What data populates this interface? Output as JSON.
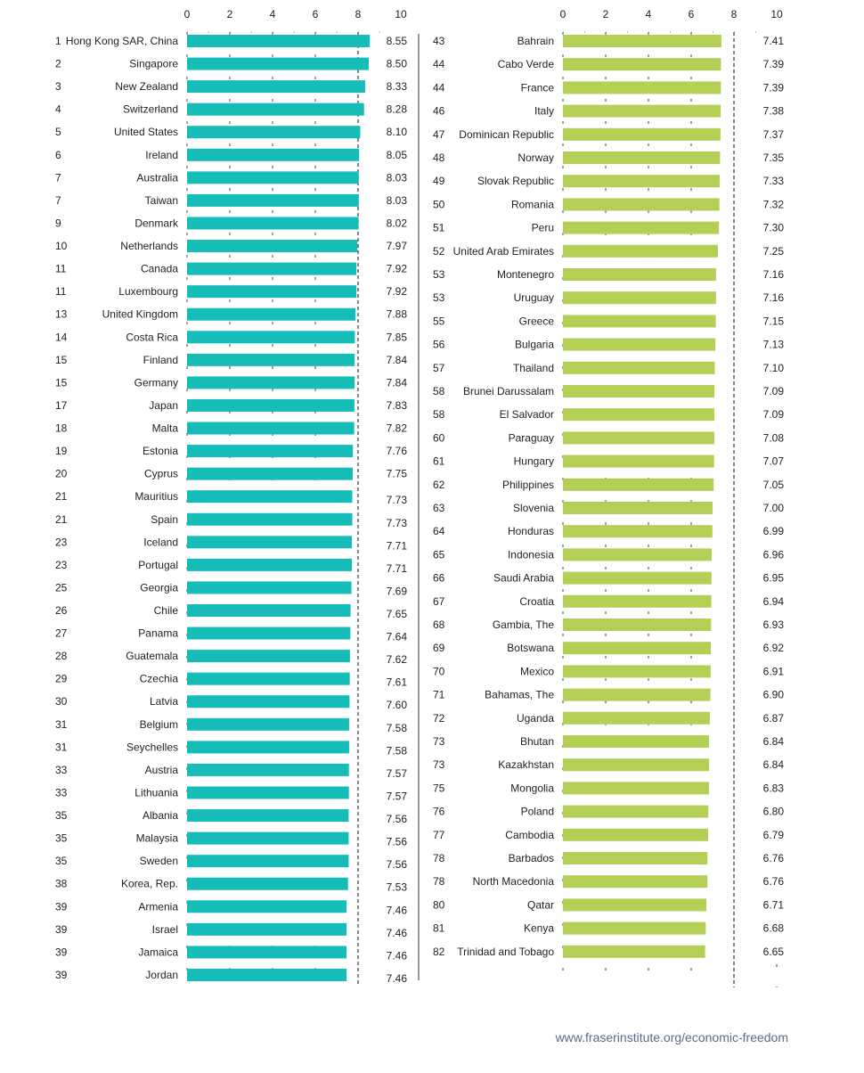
{
  "colors": {
    "left_bar": "#16bdb8",
    "right_bar": "#b3cf55",
    "grid": "#444444"
  },
  "footer": {
    "url": "www.fraserinstitute.org/economic-freedom"
  },
  "chart_data": [
    {
      "type": "bar",
      "orientation": "horizontal",
      "xlim": [
        0,
        10
      ],
      "xticks": [
        "0",
        "2",
        "4",
        "6",
        "8",
        "10"
      ],
      "grid": true,
      "rows": [
        {
          "rank": "1",
          "country": "Hong Kong SAR, China",
          "value": 8.55
        },
        {
          "rank": "2",
          "country": "Singapore",
          "value": 8.5
        },
        {
          "rank": "3",
          "country": "New Zealand",
          "value": 8.33
        },
        {
          "rank": "4",
          "country": "Switzerland",
          "value": 8.28
        },
        {
          "rank": "5",
          "country": "United States",
          "value": 8.1
        },
        {
          "rank": "6",
          "country": "Ireland",
          "value": 8.05
        },
        {
          "rank": "7",
          "country": "Australia",
          "value": 8.03
        },
        {
          "rank": "7",
          "country": "Taiwan",
          "value": 8.03
        },
        {
          "rank": "9",
          "country": "Denmark",
          "value": 8.02
        },
        {
          "rank": "10",
          "country": "Netherlands",
          "value": 7.97
        },
        {
          "rank": "11",
          "country": "Canada",
          "value": 7.92
        },
        {
          "rank": "11",
          "country": "Luxembourg",
          "value": 7.92
        },
        {
          "rank": "13",
          "country": "United Kingdom",
          "value": 7.88
        },
        {
          "rank": "14",
          "country": "Costa Rica",
          "value": 7.85
        },
        {
          "rank": "15",
          "country": "Finland",
          "value": 7.84
        },
        {
          "rank": "15",
          "country": "Germany",
          "value": 7.84
        },
        {
          "rank": "17",
          "country": "Japan",
          "value": 7.83
        },
        {
          "rank": "18",
          "country": "Malta",
          "value": 7.82
        },
        {
          "rank": "19",
          "country": "Estonia",
          "value": 7.76
        },
        {
          "rank": "20",
          "country": "Cyprus",
          "value": 7.75
        },
        {
          "rank": "21",
          "country": "Mauritius",
          "value": 7.73
        },
        {
          "rank": "21",
          "country": "Spain",
          "value": 7.73
        },
        {
          "rank": "23",
          "country": "Iceland",
          "value": 7.71
        },
        {
          "rank": "23",
          "country": "Portugal",
          "value": 7.71
        },
        {
          "rank": "25",
          "country": "Georgia",
          "value": 7.69
        },
        {
          "rank": "26",
          "country": "Chile",
          "value": 7.65
        },
        {
          "rank": "27",
          "country": "Panama",
          "value": 7.64
        },
        {
          "rank": "28",
          "country": "Guatemala",
          "value": 7.62
        },
        {
          "rank": "29",
          "country": "Czechia",
          "value": 7.61
        },
        {
          "rank": "30",
          "country": "Latvia",
          "value": 7.6
        },
        {
          "rank": "31",
          "country": "Belgium",
          "value": 7.58
        },
        {
          "rank": "31",
          "country": "Seychelles",
          "value": 7.58
        },
        {
          "rank": "33",
          "country": "Austria",
          "value": 7.57
        },
        {
          "rank": "33",
          "country": "Lithuania",
          "value": 7.57
        },
        {
          "rank": "35",
          "country": "Albania",
          "value": 7.56
        },
        {
          "rank": "35",
          "country": "Malaysia",
          "value": 7.56
        },
        {
          "rank": "35",
          "country": "Sweden",
          "value": 7.56
        },
        {
          "rank": "38",
          "country": "Korea, Rep.",
          "value": 7.53
        },
        {
          "rank": "39",
          "country": "Armenia",
          "value": 7.46
        },
        {
          "rank": "39",
          "country": "Israel",
          "value": 7.46
        },
        {
          "rank": "39",
          "country": "Jamaica",
          "value": 7.46
        },
        {
          "rank": "39",
          "country": "Jordan",
          "value": 7.46
        }
      ]
    },
    {
      "type": "bar",
      "orientation": "horizontal",
      "xlim": [
        0,
        10
      ],
      "xticks": [
        "0",
        "2",
        "4",
        "6",
        "8",
        "10"
      ],
      "grid": true,
      "rows": [
        {
          "rank": "43",
          "country": "Bahrain",
          "value": 7.41
        },
        {
          "rank": "44",
          "country": "Cabo Verde",
          "value": 7.39
        },
        {
          "rank": "44",
          "country": "France",
          "value": 7.39
        },
        {
          "rank": "46",
          "country": "Italy",
          "value": 7.38
        },
        {
          "rank": "47",
          "country": "Dominican Republic",
          "value": 7.37
        },
        {
          "rank": "48",
          "country": "Norway",
          "value": 7.35
        },
        {
          "rank": "49",
          "country": "Slovak Republic",
          "value": 7.33
        },
        {
          "rank": "50",
          "country": "Romania",
          "value": 7.32
        },
        {
          "rank": "51",
          "country": "Peru",
          "value": 7.3
        },
        {
          "rank": "52",
          "country": "United Arab Emirates",
          "value": 7.25
        },
        {
          "rank": "53",
          "country": "Montenegro",
          "value": 7.16
        },
        {
          "rank": "53",
          "country": "Uruguay",
          "value": 7.16
        },
        {
          "rank": "55",
          "country": "Greece",
          "value": 7.15
        },
        {
          "rank": "56",
          "country": "Bulgaria",
          "value": 7.13
        },
        {
          "rank": "57",
          "country": "Thailand",
          "value": 7.1
        },
        {
          "rank": "58",
          "country": "Brunei Darussalam",
          "value": 7.09
        },
        {
          "rank": "58",
          "country": "El Salvador",
          "value": 7.09
        },
        {
          "rank": "60",
          "country": "Paraguay",
          "value": 7.08
        },
        {
          "rank": "61",
          "country": "Hungary",
          "value": 7.07
        },
        {
          "rank": "62",
          "country": "Philippines",
          "value": 7.05
        },
        {
          "rank": "63",
          "country": "Slovenia",
          "value": 7.0
        },
        {
          "rank": "64",
          "country": "Honduras",
          "value": 6.99
        },
        {
          "rank": "65",
          "country": "Indonesia",
          "value": 6.96
        },
        {
          "rank": "66",
          "country": "Saudi Arabia",
          "value": 6.95
        },
        {
          "rank": "67",
          "country": "Croatia",
          "value": 6.94
        },
        {
          "rank": "68",
          "country": "Gambia, The",
          "value": 6.93
        },
        {
          "rank": "69",
          "country": "Botswana",
          "value": 6.92
        },
        {
          "rank": "70",
          "country": "Mexico",
          "value": 6.91
        },
        {
          "rank": "71",
          "country": "Bahamas, The",
          "value": 6.9
        },
        {
          "rank": "72",
          "country": "Uganda",
          "value": 6.87
        },
        {
          "rank": "73",
          "country": "Bhutan",
          "value": 6.84
        },
        {
          "rank": "73",
          "country": "Kazakhstan",
          "value": 6.84
        },
        {
          "rank": "75",
          "country": "Mongolia",
          "value": 6.83
        },
        {
          "rank": "76",
          "country": "Poland",
          "value": 6.8
        },
        {
          "rank": "77",
          "country": "Cambodia",
          "value": 6.79
        },
        {
          "rank": "78",
          "country": "Barbados",
          "value": 6.76
        },
        {
          "rank": "78",
          "country": "North Macedonia",
          "value": 6.76
        },
        {
          "rank": "80",
          "country": "Qatar",
          "value": 6.71
        },
        {
          "rank": "81",
          "country": "Kenya",
          "value": 6.68
        },
        {
          "rank": "82",
          "country": "Trinidad and Tobago",
          "value": 6.65
        }
      ]
    }
  ]
}
